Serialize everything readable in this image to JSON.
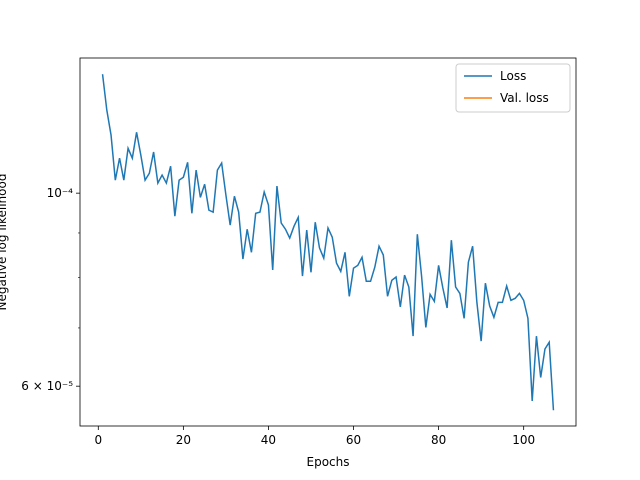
{
  "chart_data": {
    "type": "line",
    "xlabel": "Epochs",
    "ylabel": "Negative log likelihood",
    "x": [
      1,
      2,
      3,
      4,
      5,
      6,
      7,
      8,
      9,
      10,
      11,
      12,
      13,
      14,
      15,
      16,
      17,
      18,
      19,
      20,
      21,
      22,
      23,
      24,
      25,
      26,
      27,
      28,
      29,
      30,
      31,
      32,
      33,
      34,
      35,
      36,
      37,
      38,
      39,
      40,
      41,
      42,
      43,
      44,
      45,
      46,
      47,
      48,
      49,
      50,
      51,
      52,
      53,
      54,
      55,
      56,
      57,
      58,
      59,
      60,
      61,
      62,
      63,
      64,
      65,
      66,
      67,
      68,
      69,
      70,
      71,
      72,
      73,
      74,
      75,
      76,
      77,
      78,
      79,
      80,
      81,
      82,
      83,
      84,
      85,
      86,
      87,
      88,
      89,
      90,
      91,
      92,
      93,
      94,
      95,
      96,
      97,
      98,
      99,
      100,
      101,
      102,
      103,
      104,
      105,
      106,
      107
    ],
    "series": [
      {
        "name": "Loss",
        "color": "#1f77b4",
        "values": [
          0.000137,
          0.0001246,
          0.0001166,
          0.0001035,
          0.0001097,
          0.0001035,
          0.0001126,
          0.0001097,
          0.0001175,
          0.0001106,
          0.0001035,
          0.0001054,
          0.0001115,
          0.0001027,
          0.0001049,
          0.0001027,
          0.0001074,
          9.41e-05,
          0.0001035,
          0.0001043,
          0.0001085,
          9.48e-05,
          0.0001063,
          9.89e-05,
          0.0001024,
          9.56e-05,
          9.51e-05,
          0.0001063,
          0.0001083,
          9.95e-05,
          9.19e-05,
          9.92e-05,
          9.51e-05,
          8.4e-05,
          9.09e-05,
          8.55e-05,
          9.48e-05,
          9.51e-05,
          0.0001003,
          9.69e-05,
          8.16e-05,
          0.0001019,
          9.24e-05,
          9.09e-05,
          8.88e-05,
          9.16e-05,
          9.38e-05,
          8.03e-05,
          9.07e-05,
          8.11e-05,
          9.26e-05,
          8.65e-05,
          8.42e-05,
          9.12e-05,
          8.9e-05,
          8.31e-05,
          8.13e-05,
          8.55e-05,
          7.61e-05,
          8.2e-05,
          8.26e-05,
          8.44e-05,
          7.92e-05,
          7.92e-05,
          8.22e-05,
          8.69e-05,
          8.49e-05,
          7.61e-05,
          7.94e-05,
          8.01e-05,
          7.4e-05,
          8.05e-05,
          7.8e-05,
          6.85e-05,
          8.97e-05,
          8.03e-05,
          7.01e-05,
          7.65e-05,
          7.51e-05,
          8.26e-05,
          7.78e-05,
          7.38e-05,
          8.83e-05,
          7.8e-05,
          7.67e-05,
          7.18e-05,
          8.33e-05,
          8.69e-05,
          7.49e-05,
          6.76e-05,
          7.88e-05,
          7.42e-05,
          7.2e-05,
          7.49e-05,
          7.49e-05,
          7.82e-05,
          7.53e-05,
          7.57e-05,
          7.67e-05,
          7.53e-05,
          7.18e-05,
          5.77e-05,
          6.85e-05,
          6.14e-05,
          6.62e-05,
          6.74e-05,
          5.63e-05
        ]
      },
      {
        "name": "Val. loss",
        "color": "#ff7f0e",
        "values": [
          null,
          null,
          null,
          null,
          null,
          null,
          null,
          null,
          null,
          null,
          null,
          null,
          null,
          null,
          null,
          null,
          null,
          null,
          null,
          null,
          null,
          null,
          null,
          null,
          null,
          null,
          null,
          null,
          null,
          null,
          null,
          null,
          null,
          null,
          null,
          null,
          null,
          null,
          null,
          null,
          null,
          null,
          null,
          null,
          null,
          null,
          null,
          null,
          null,
          null,
          null,
          null,
          null,
          null,
          null,
          null,
          null,
          null,
          null,
          null,
          null,
          null,
          null,
          null,
          null,
          null,
          null,
          null,
          null,
          null,
          null,
          null,
          null,
          null,
          null,
          null,
          null,
          null,
          null,
          null,
          null,
          null,
          null,
          null,
          null,
          null,
          null,
          null,
          null,
          null,
          null,
          null,
          null,
          null,
          null,
          null,
          null,
          null,
          null,
          null,
          null,
          null,
          null,
          null,
          null,
          null,
          null
        ]
      }
    ],
    "xlim": [
      -4.3,
      112.3
    ],
    "xticks": [
      0,
      20,
      40,
      60,
      80,
      100
    ],
    "ylim": [
      5.4e-05,
      0.000143
    ],
    "yscale": "log",
    "yticks": [
      {
        "value": 0.0001,
        "label": "10⁻⁴"
      },
      {
        "value": 6e-05,
        "label": "6 × 10⁻⁵"
      }
    ],
    "yminorticks": [
      7e-05,
      8e-05,
      9e-05
    ],
    "legend": "upper right"
  }
}
